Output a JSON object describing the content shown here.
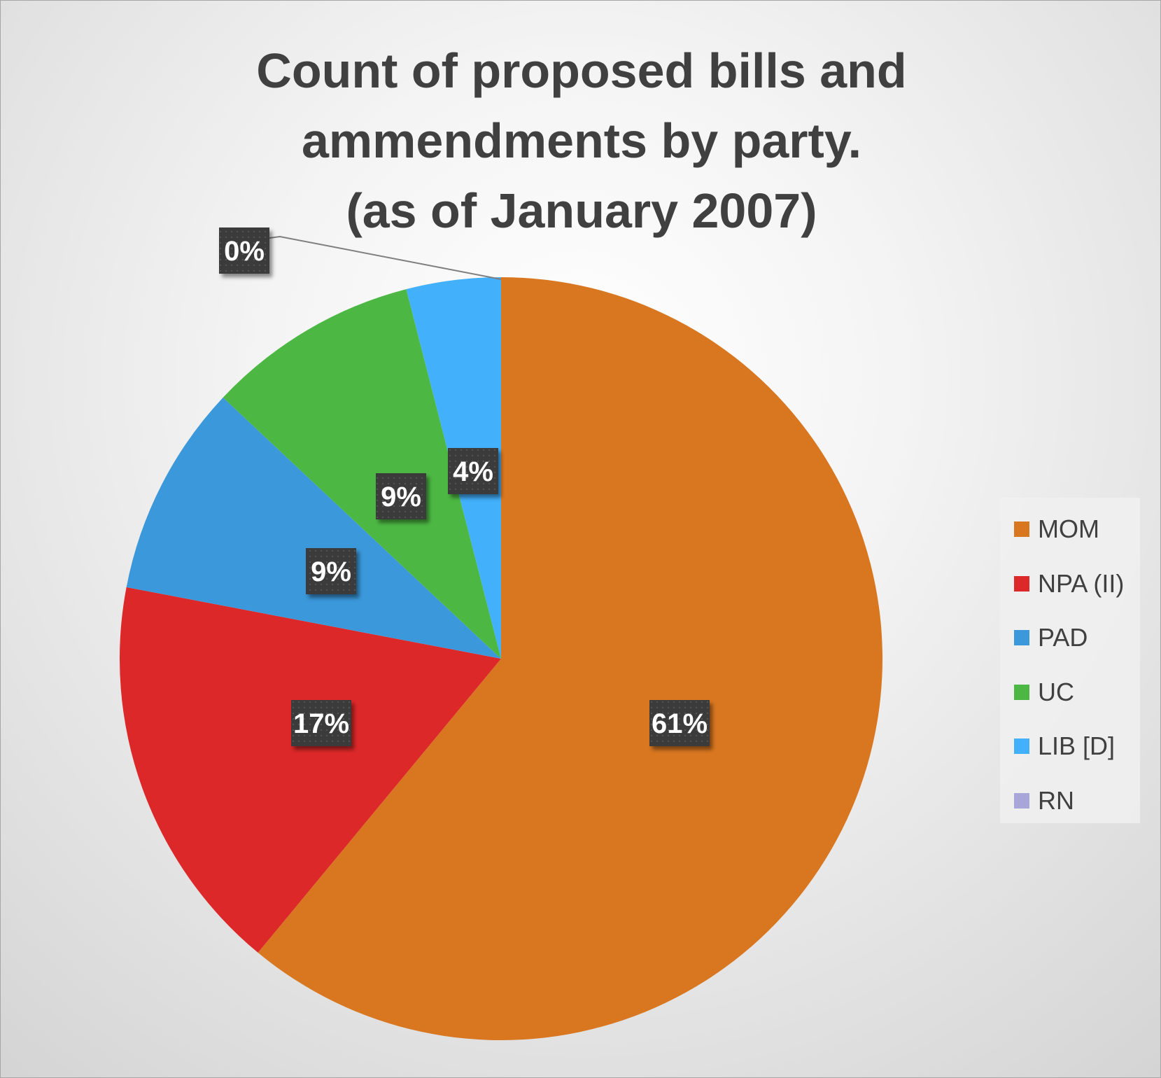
{
  "chart_data": {
    "type": "pie",
    "title_lines": [
      "Count of proposed bills and",
      "ammendments by party.",
      "(as of January 2007)"
    ],
    "slices": [
      {
        "name": "MOM",
        "value": 61,
        "label": "61%",
        "color": "#d97720"
      },
      {
        "name": "NPA (II)",
        "value": 17,
        "label": "17%",
        "color": "#dc2828"
      },
      {
        "name": "PAD",
        "value": 9,
        "label": "9%",
        "color": "#3a98db"
      },
      {
        "name": "UC",
        "value": 9,
        "label": "9%",
        "color": "#4cb843"
      },
      {
        "name": "LIB [D]",
        "value": 4,
        "label": "4%",
        "color": "#42b0fb"
      },
      {
        "name": "RN",
        "value": 0,
        "label": "0%",
        "color": "#a8a6d8"
      }
    ],
    "data_label_style": "dark boxes with white bold text",
    "legend_position": "right"
  }
}
